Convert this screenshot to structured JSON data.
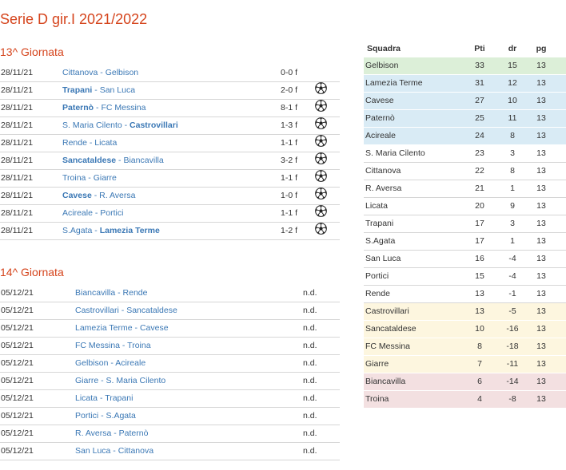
{
  "page_title": "Serie D gir.I 2021/2022",
  "colors": {
    "title": "#d5441c",
    "link": "#3b78b5",
    "zone_green": "#dcefd8",
    "zone_blue": "#d9ebf5",
    "zone_yellow": "#fdf6df",
    "zone_red": "#f3e0e1"
  },
  "round13": {
    "title": "13^ Giornata",
    "matches": [
      {
        "date": "28/11/21",
        "home": "Cittanova",
        "away": "Gelbison",
        "winner": "",
        "score": "0-0 f",
        "icon": "soccer-ball-icon-hidden"
      },
      {
        "date": "28/11/21",
        "home": "Trapani",
        "away": "San Luca",
        "winner": "home",
        "score": "2-0 f",
        "icon": "soccer-ball-icon"
      },
      {
        "date": "28/11/21",
        "home": "Paternò",
        "away": "FC Messina",
        "winner": "home",
        "score": "8-1 f",
        "icon": "soccer-ball-icon"
      },
      {
        "date": "28/11/21",
        "home": "S. Maria Cilento",
        "away": "Castrovillari",
        "winner": "away",
        "score": "1-3 f",
        "icon": "soccer-ball-icon"
      },
      {
        "date": "28/11/21",
        "home": "Rende",
        "away": "Licata",
        "winner": "",
        "score": "1-1 f",
        "icon": "soccer-ball-icon"
      },
      {
        "date": "28/11/21",
        "home": "Sancataldese",
        "away": "Biancavilla",
        "winner": "home",
        "score": "3-2 f",
        "icon": "soccer-ball-icon"
      },
      {
        "date": "28/11/21",
        "home": "Troina",
        "away": "Giarre",
        "winner": "",
        "score": "1-1 f",
        "icon": "soccer-ball-icon"
      },
      {
        "date": "28/11/21",
        "home": "Cavese",
        "away": "R. Aversa",
        "winner": "home",
        "score": "1-0 f",
        "icon": "soccer-ball-icon"
      },
      {
        "date": "28/11/21",
        "home": "Acireale",
        "away": "Portici",
        "winner": "",
        "score": "1-1 f",
        "icon": "soccer-ball-icon"
      },
      {
        "date": "28/11/21",
        "home": "S.Agata",
        "away": "Lamezia Terme",
        "winner": "away",
        "score": "1-2 f",
        "icon": "soccer-ball-icon"
      }
    ]
  },
  "round14": {
    "title": "14^ Giornata",
    "matches": [
      {
        "date": "05/12/21",
        "home": "Biancavilla",
        "away": "Rende",
        "score": "n.d."
      },
      {
        "date": "05/12/21",
        "home": "Castrovillari",
        "away": "Sancataldese",
        "score": "n.d."
      },
      {
        "date": "05/12/21",
        "home": "Lamezia Terme",
        "away": "Cavese",
        "score": "n.d."
      },
      {
        "date": "05/12/21",
        "home": "FC Messina",
        "away": "Troina",
        "score": "n.d."
      },
      {
        "date": "05/12/21",
        "home": "Gelbison",
        "away": "Acireale",
        "score": "n.d."
      },
      {
        "date": "05/12/21",
        "home": "Giarre",
        "away": "S. Maria Cilento",
        "score": "n.d."
      },
      {
        "date": "05/12/21",
        "home": "Licata",
        "away": "Trapani",
        "score": "n.d."
      },
      {
        "date": "05/12/21",
        "home": "Portici",
        "away": "S.Agata",
        "score": "n.d."
      },
      {
        "date": "05/12/21",
        "home": "R. Aversa",
        "away": "Paternò",
        "score": "n.d."
      },
      {
        "date": "05/12/21",
        "home": "San Luca",
        "away": "Cittanova",
        "score": "n.d."
      }
    ]
  },
  "standings": {
    "headers": {
      "team": "Squadra",
      "pts": "Pti",
      "dr": "dr",
      "pg": "pg"
    },
    "rows": [
      {
        "team": "Gelbison",
        "pts": "33",
        "dr": "15",
        "pg": "13",
        "zone": "green"
      },
      {
        "team": "Lamezia Terme",
        "pts": "31",
        "dr": "12",
        "pg": "13",
        "zone": "blue"
      },
      {
        "team": "Cavese",
        "pts": "27",
        "dr": "10",
        "pg": "13",
        "zone": "blue"
      },
      {
        "team": "Paternò",
        "pts": "25",
        "dr": "11",
        "pg": "13",
        "zone": "blue"
      },
      {
        "team": "Acireale",
        "pts": "24",
        "dr": "8",
        "pg": "13",
        "zone": "blue"
      },
      {
        "team": "S. Maria Cilento",
        "pts": "23",
        "dr": "3",
        "pg": "13",
        "zone": "none"
      },
      {
        "team": "Cittanova",
        "pts": "22",
        "dr": "8",
        "pg": "13",
        "zone": "none"
      },
      {
        "team": "R. Aversa",
        "pts": "21",
        "dr": "1",
        "pg": "13",
        "zone": "none"
      },
      {
        "team": "Licata",
        "pts": "20",
        "dr": "9",
        "pg": "13",
        "zone": "none"
      },
      {
        "team": "Trapani",
        "pts": "17",
        "dr": "3",
        "pg": "13",
        "zone": "none"
      },
      {
        "team": "S.Agata",
        "pts": "17",
        "dr": "1",
        "pg": "13",
        "zone": "none"
      },
      {
        "team": "San Luca",
        "pts": "16",
        "dr": "-4",
        "pg": "13",
        "zone": "none"
      },
      {
        "team": "Portici",
        "pts": "15",
        "dr": "-4",
        "pg": "13",
        "zone": "none"
      },
      {
        "team": "Rende",
        "pts": "13",
        "dr": "-1",
        "pg": "13",
        "zone": "none"
      },
      {
        "team": "Castrovillari",
        "pts": "13",
        "dr": "-5",
        "pg": "13",
        "zone": "yellow"
      },
      {
        "team": "Sancataldese",
        "pts": "10",
        "dr": "-16",
        "pg": "13",
        "zone": "yellow"
      },
      {
        "team": "FC Messina",
        "pts": "8",
        "dr": "-18",
        "pg": "13",
        "zone": "yellow"
      },
      {
        "team": "Giarre",
        "pts": "7",
        "dr": "-11",
        "pg": "13",
        "zone": "yellow"
      },
      {
        "team": "Biancavilla",
        "pts": "6",
        "dr": "-14",
        "pg": "13",
        "zone": "red"
      },
      {
        "team": "Troina",
        "pts": "4",
        "dr": "-8",
        "pg": "13",
        "zone": "red"
      }
    ]
  }
}
